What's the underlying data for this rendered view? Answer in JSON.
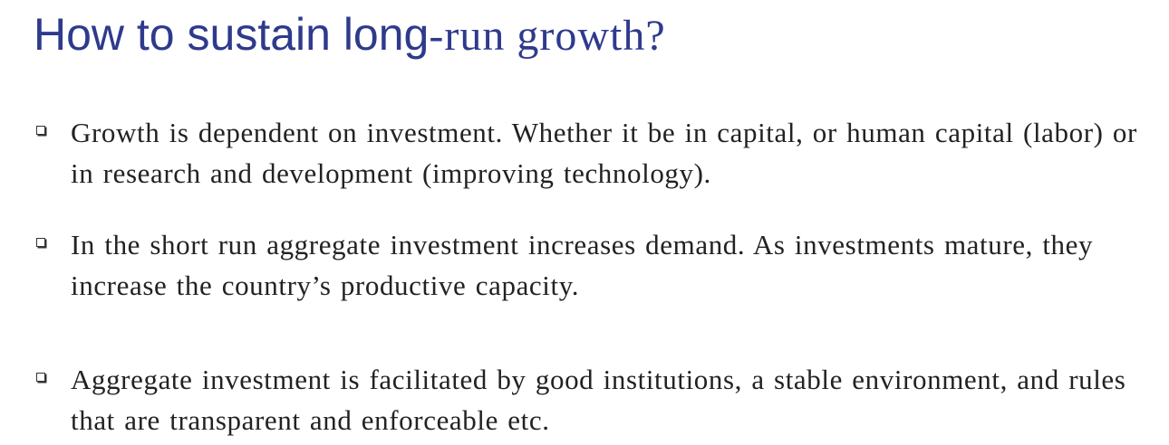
{
  "slide": {
    "title_sans": "How to sustain long",
    "title_serif": "-run growth?",
    "bullets": [
      {
        "text": "Growth is dependent on investment. Whether it be in capital, or human capital (labor) or in research and development (improving technology)."
      },
      {
        "text": "In the short run aggregate investment increases demand. As investments mature, they increase the country’s productive capacity."
      },
      {
        "text": "Aggregate investment is facilitated by good institutions, a stable environment, and rules that are transparent and enforceable etc."
      }
    ]
  },
  "colors": {
    "title": "#2e3a8c",
    "body_text": "#222222",
    "bullet_box": "#333333",
    "background": "#ffffff"
  },
  "icons": {
    "bullet": "hollow-square-bullet-icon"
  }
}
